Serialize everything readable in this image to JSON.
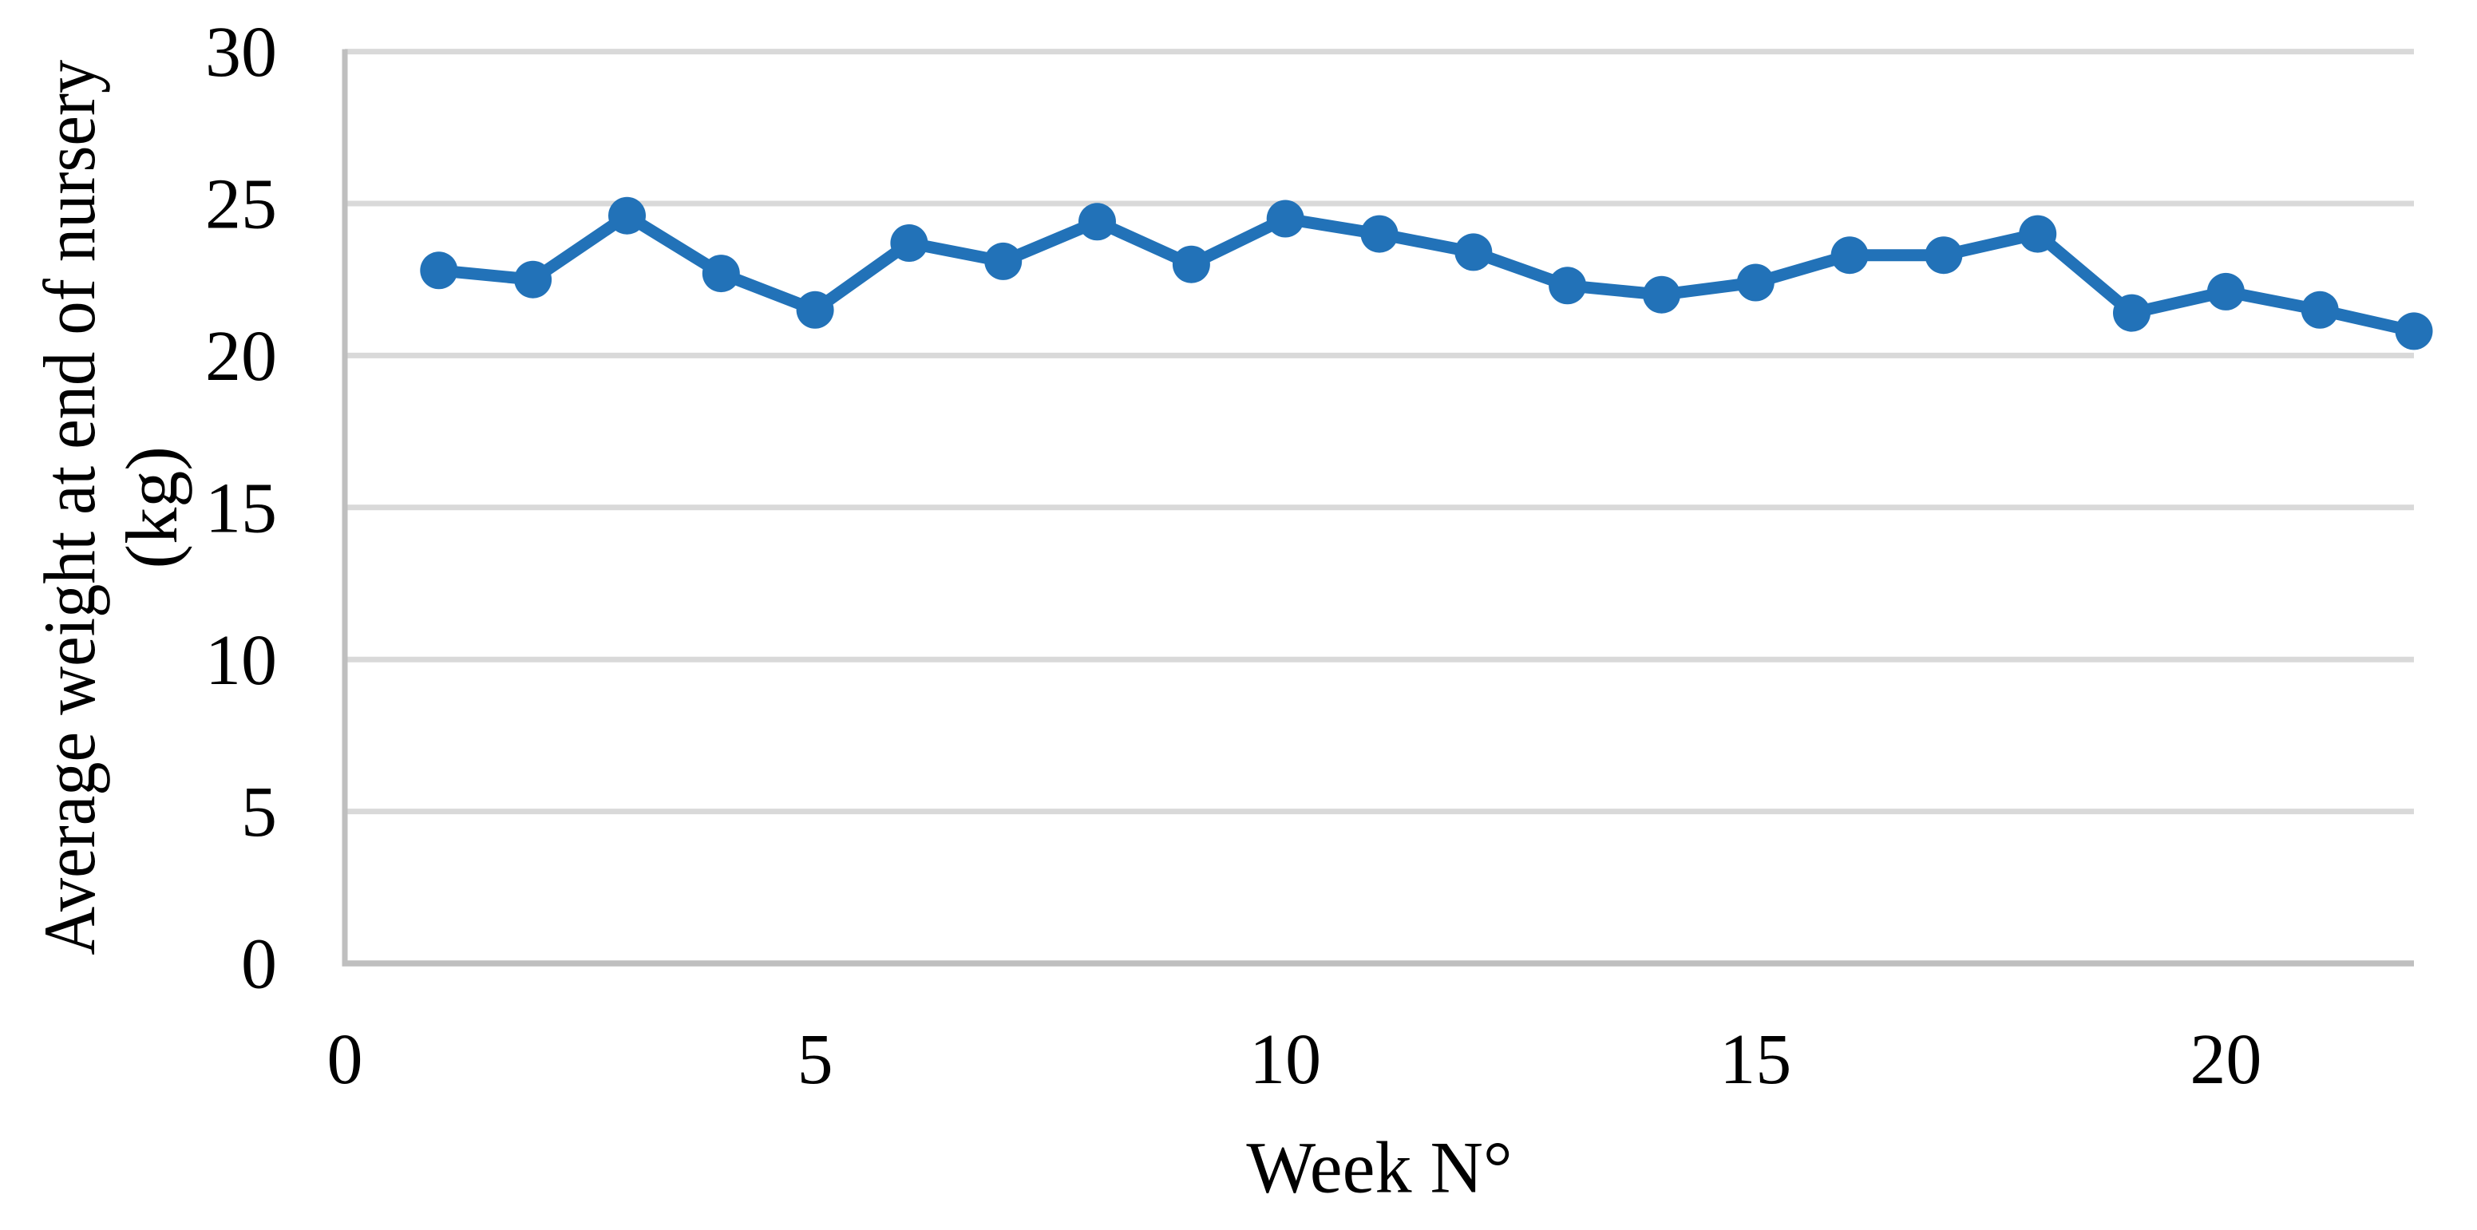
{
  "chart_data": {
    "type": "line",
    "title": "",
    "xlabel": "Week N°",
    "ylabel": "Average weight at end of nursery (kg)",
    "ylabel_lines": [
      "Average weight at end of nursery",
      "(kg)"
    ],
    "x": [
      1,
      2,
      3,
      4,
      5,
      6,
      7,
      8,
      9,
      10,
      11,
      12,
      13,
      14,
      15,
      16,
      17,
      18,
      19,
      20,
      21,
      22
    ],
    "values": [
      22.8,
      22.5,
      24.6,
      22.7,
      21.5,
      23.7,
      23.1,
      24.4,
      23.0,
      24.5,
      24.0,
      23.4,
      22.3,
      22.0,
      22.4,
      23.3,
      23.3,
      24.0,
      21.4,
      22.1,
      21.5,
      20.8
    ],
    "xlim": [
      0,
      22
    ],
    "ylim": [
      0,
      30
    ],
    "x_ticks": [
      0,
      5,
      10,
      15,
      20
    ],
    "y_ticks": [
      0,
      5,
      10,
      15,
      20,
      25,
      30
    ],
    "grid": "horizontal",
    "legend": "none",
    "colors": {
      "line": "#2272B8",
      "marker": "#2272B8",
      "gridline": "#D9D9D9",
      "axis": "#BFBFBF",
      "text": "#000000",
      "background": "#FFFFFF"
    }
  }
}
